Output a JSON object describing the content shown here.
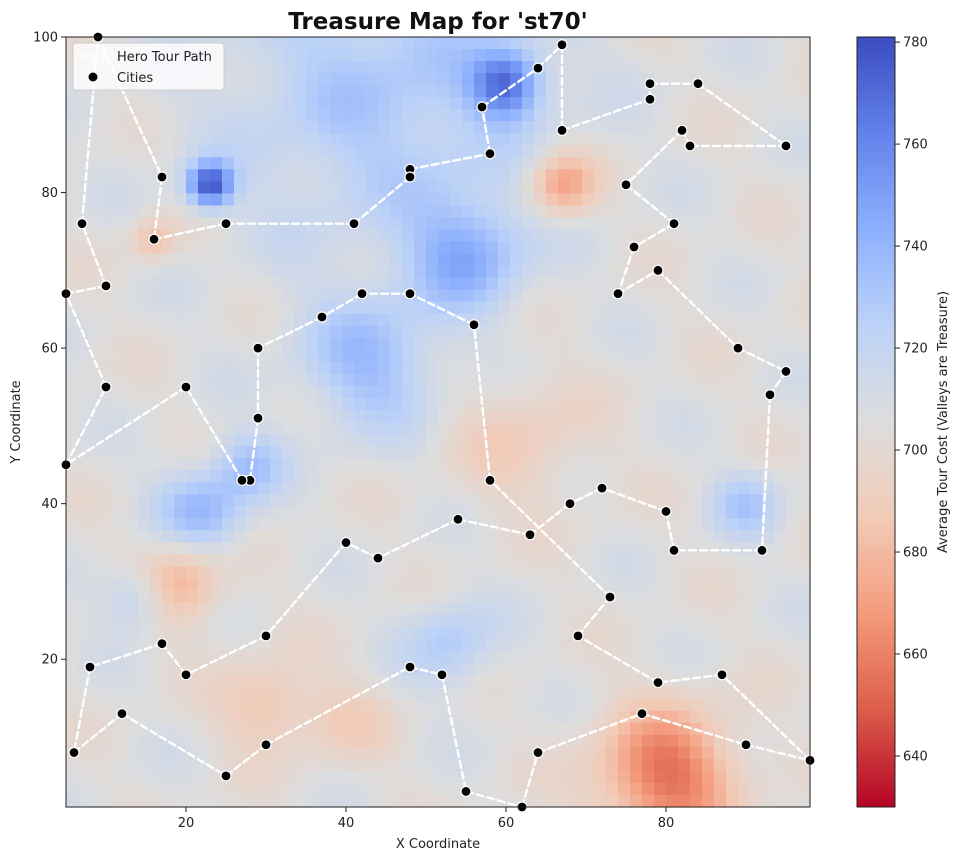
{
  "chart_data": {
    "type": "heatmap",
    "title": "Treasure Map for 'st70'",
    "xlabel": "X Coordinate",
    "ylabel": "Y Coordinate",
    "xlim": [
      5,
      98
    ],
    "ylim": [
      1,
      100
    ],
    "x_ticks": [
      20,
      40,
      60,
      80
    ],
    "y_ticks": [
      20,
      40,
      60,
      80,
      100
    ],
    "grid": false,
    "legend": {
      "placement": "top-left",
      "entries": [
        {
          "label": "Hero Tour Path",
          "kind": "dashed-line",
          "color": "#ffffff"
        },
        {
          "label": "Cities",
          "kind": "marker",
          "color": "#000000"
        }
      ]
    },
    "colorbar": {
      "label": "Average Tour Cost (Valleys are Treasure)",
      "min": 630,
      "max": 781,
      "ticks": [
        640,
        660,
        680,
        700,
        720,
        740,
        760,
        780
      ],
      "colormap": "coolwarm_r",
      "stops": [
        "#b40426",
        "#dc5d4a",
        "#f49a7b",
        "#f2cbb7",
        "#dddddd",
        "#bcd2f7",
        "#8db0fe",
        "#6282ea",
        "#3b4cc0"
      ]
    },
    "background_value": 705,
    "features": [
      {
        "x": 45,
        "y": 93,
        "value": 730,
        "spread": 14
      },
      {
        "x": 60,
        "y": 94,
        "value": 760,
        "spread": 3
      },
      {
        "x": 23,
        "y": 81,
        "value": 775,
        "spread": 2
      },
      {
        "x": 55,
        "y": 72,
        "value": 740,
        "spread": 5
      },
      {
        "x": 43,
        "y": 58,
        "value": 735,
        "spread": 6
      },
      {
        "x": 22,
        "y": 39,
        "value": 738,
        "spread": 4
      },
      {
        "x": 14,
        "y": 28,
        "value": 730,
        "spread": 3
      },
      {
        "x": 53,
        "y": 22,
        "value": 728,
        "spread": 4
      },
      {
        "x": 90,
        "y": 40,
        "value": 728,
        "spread": 3
      },
      {
        "x": 28,
        "y": 45,
        "value": 730,
        "spread": 3
      },
      {
        "x": 67,
        "y": 81,
        "value": 668,
        "spread": 3
      },
      {
        "x": 19,
        "y": 30,
        "value": 675,
        "spread": 4
      },
      {
        "x": 80,
        "y": 5,
        "value": 655,
        "spread": 6
      },
      {
        "x": 30,
        "y": 14,
        "value": 683,
        "spread": 4
      },
      {
        "x": 16,
        "y": 74,
        "value": 682,
        "spread": 2
      },
      {
        "x": 62,
        "y": 48,
        "value": 690,
        "spread": 6
      },
      {
        "x": 40,
        "y": 12,
        "value": 692,
        "spread": 4
      }
    ],
    "cities": [
      {
        "x": 64,
        "y": 96
      },
      {
        "x": 80,
        "y": 39
      },
      {
        "x": 69,
        "y": 23
      },
      {
        "x": 72,
        "y": 42
      },
      {
        "x": 48,
        "y": 67
      },
      {
        "x": 58,
        "y": 43
      },
      {
        "x": 81,
        "y": 34
      },
      {
        "x": 79,
        "y": 17
      },
      {
        "x": 30,
        "y": 23
      },
      {
        "x": 42,
        "y": 67
      },
      {
        "x": 7,
        "y": 76
      },
      {
        "x": 29,
        "y": 51
      },
      {
        "x": 78,
        "y": 92
      },
      {
        "x": 64,
        "y": 8
      },
      {
        "x": 95,
        "y": 57
      },
      {
        "x": 57,
        "y": 91
      },
      {
        "x": 40,
        "y": 35
      },
      {
        "x": 68,
        "y": 40
      },
      {
        "x": 92,
        "y": 34
      },
      {
        "x": 62,
        "y": 1
      },
      {
        "x": 28,
        "y": 43
      },
      {
        "x": 76,
        "y": 73
      },
      {
        "x": 67,
        "y": 88
      },
      {
        "x": 93,
        "y": 54
      },
      {
        "x": 6,
        "y": 8
      },
      {
        "x": 87,
        "y": 18
      },
      {
        "x": 30,
        "y": 9
      },
      {
        "x": 77,
        "y": 13
      },
      {
        "x": 78,
        "y": 94
      },
      {
        "x": 55,
        "y": 3
      },
      {
        "x": 82,
        "y": 88
      },
      {
        "x": 73,
        "y": 28
      },
      {
        "x": 20,
        "y": 55
      },
      {
        "x": 27,
        "y": 43
      },
      {
        "x": 95,
        "y": 86
      },
      {
        "x": 67,
        "y": 99
      },
      {
        "x": 48,
        "y": 83
      },
      {
        "x": 75,
        "y": 81
      },
      {
        "x": 8,
        "y": 19
      },
      {
        "x": 20,
        "y": 18
      },
      {
        "x": 54,
        "y": 38
      },
      {
        "x": 63,
        "y": 36
      },
      {
        "x": 44,
        "y": 33
      },
      {
        "x": 52,
        "y": 18
      },
      {
        "x": 12,
        "y": 13
      },
      {
        "x": 25,
        "y": 5
      },
      {
        "x": 58,
        "y": 85
      },
      {
        "x": 5,
        "y": 67
      },
      {
        "x": 90,
        "y": 9
      },
      {
        "x": 41,
        "y": 76
      },
      {
        "x": 25,
        "y": 76
      },
      {
        "x": 37,
        "y": 64
      },
      {
        "x": 56,
        "y": 63
      },
      {
        "x": 10,
        "y": 55
      },
      {
        "x": 98,
        "y": 7
      },
      {
        "x": 16,
        "y": 74
      },
      {
        "x": 89,
        "y": 60
      },
      {
        "x": 48,
        "y": 82
      },
      {
        "x": 83,
        "y": 86
      },
      {
        "x": 84,
        "y": 94
      },
      {
        "x": 79,
        "y": 70
      },
      {
        "x": 74,
        "y": 67
      },
      {
        "x": 17,
        "y": 82
      },
      {
        "x": 5,
        "y": 45
      },
      {
        "x": 10,
        "y": 68
      },
      {
        "x": 17,
        "y": 22
      },
      {
        "x": 48,
        "y": 19
      },
      {
        "x": 9,
        "y": 100
      },
      {
        "x": 81,
        "y": 76
      },
      {
        "x": 29,
        "y": 60
      }
    ],
    "tour": [
      {
        "x": 9,
        "y": 100
      },
      {
        "x": 17,
        "y": 82
      },
      {
        "x": 16,
        "y": 74
      },
      {
        "x": 25,
        "y": 76
      },
      {
        "x": 41,
        "y": 76
      },
      {
        "x": 48,
        "y": 82
      },
      {
        "x": 48,
        "y": 83
      },
      {
        "x": 58,
        "y": 85
      },
      {
        "x": 57,
        "y": 91
      },
      {
        "x": 64,
        "y": 96
      },
      {
        "x": 67,
        "y": 99
      },
      {
        "x": 67,
        "y": 88
      },
      {
        "x": 78,
        "y": 92
      },
      {
        "x": 78,
        "y": 94
      },
      {
        "x": 84,
        "y": 94
      },
      {
        "x": 95,
        "y": 86
      },
      {
        "x": 83,
        "y": 86
      },
      {
        "x": 82,
        "y": 88
      },
      {
        "x": 75,
        "y": 81
      },
      {
        "x": 81,
        "y": 76
      },
      {
        "x": 76,
        "y": 73
      },
      {
        "x": 74,
        "y": 67
      },
      {
        "x": 79,
        "y": 70
      },
      {
        "x": 89,
        "y": 60
      },
      {
        "x": 95,
        "y": 57
      },
      {
        "x": 93,
        "y": 54
      },
      {
        "x": 92,
        "y": 34
      },
      {
        "x": 81,
        "y": 34
      },
      {
        "x": 80,
        "y": 39
      },
      {
        "x": 72,
        "y": 42
      },
      {
        "x": 68,
        "y": 40
      },
      {
        "x": 63,
        "y": 36
      },
      {
        "x": 54,
        "y": 38
      },
      {
        "x": 44,
        "y": 33
      },
      {
        "x": 40,
        "y": 35
      },
      {
        "x": 30,
        "y": 23
      },
      {
        "x": 20,
        "y": 18
      },
      {
        "x": 17,
        "y": 22
      },
      {
        "x": 8,
        "y": 19
      },
      {
        "x": 6,
        "y": 8
      },
      {
        "x": 12,
        "y": 13
      },
      {
        "x": 25,
        "y": 5
      },
      {
        "x": 30,
        "y": 9
      },
      {
        "x": 48,
        "y": 19
      },
      {
        "x": 52,
        "y": 18
      },
      {
        "x": 55,
        "y": 3
      },
      {
        "x": 62,
        "y": 1
      },
      {
        "x": 64,
        "y": 8
      },
      {
        "x": 77,
        "y": 13
      },
      {
        "x": 90,
        "y": 9
      },
      {
        "x": 98,
        "y": 7
      },
      {
        "x": 87,
        "y": 18
      },
      {
        "x": 79,
        "y": 17
      },
      {
        "x": 69,
        "y": 23
      },
      {
        "x": 73,
        "y": 28
      },
      {
        "x": 58,
        "y": 43
      },
      {
        "x": 56,
        "y": 63
      },
      {
        "x": 48,
        "y": 67
      },
      {
        "x": 42,
        "y": 67
      },
      {
        "x": 37,
        "y": 64
      },
      {
        "x": 29,
        "y": 60
      },
      {
        "x": 29,
        "y": 51
      },
      {
        "x": 28,
        "y": 43
      },
      {
        "x": 27,
        "y": 43
      },
      {
        "x": 20,
        "y": 55
      },
      {
        "x": 5,
        "y": 45
      },
      {
        "x": 10,
        "y": 55
      },
      {
        "x": 5,
        "y": 67
      },
      {
        "x": 10,
        "y": 68
      },
      {
        "x": 7,
        "y": 76
      },
      {
        "x": 9,
        "y": 100
      }
    ]
  }
}
